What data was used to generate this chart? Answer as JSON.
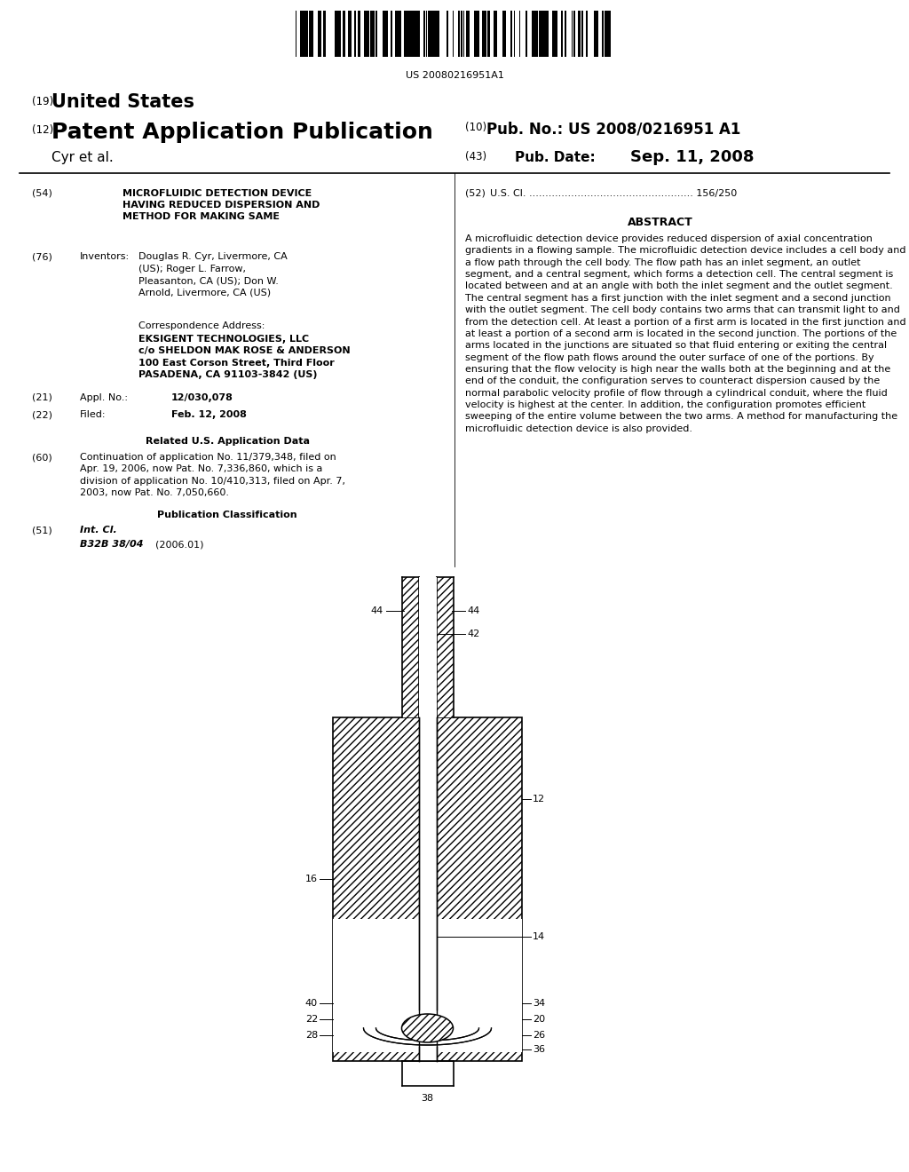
{
  "bg_color": "#ffffff",
  "barcode_text": "US 20080216951A1",
  "header_19": "(19)",
  "header_19_text": "United States",
  "header_12": "(12)",
  "header_12_text": "Patent Application Publication",
  "header_10": "(10)",
  "header_10_text": "Pub. No.: US 2008/0216951 A1",
  "header_43": "(43)",
  "header_43_text": "Pub. Date:",
  "header_43_date": "Sep. 11, 2008",
  "author_line": "Cyr et al.",
  "field_54_num": "(54)",
  "field_54_label": "MICROFLUIDIC DETECTION DEVICE\nHAVING REDUCED DISPERSION AND\nMETHOD FOR MAKING SAME",
  "field_76_num": "(76)",
  "field_76_label": "Inventors:",
  "field_76_text": "Douglas R. Cyr, Livermore, CA\n(US); Roger L. Farrow,\nPleasanton, CA (US); Don W.\nArnold, Livermore, CA (US)",
  "corr_label": "Correspondence Address:",
  "corr_text": "EKSIGENT TECHNOLOGIES, LLC\nc/o SHELDON MAK ROSE & ANDERSON\n100 East Corson Street, Third Floor\nPASADENA, CA 91103-3842 (US)",
  "field_21_num": "(21)",
  "field_21_label": "Appl. No.:",
  "field_21_text": "12/030,078",
  "field_22_num": "(22)",
  "field_22_label": "Filed:",
  "field_22_text": "Feb. 12, 2008",
  "related_header": "Related U.S. Application Data",
  "field_60_num": "(60)",
  "field_60_text": "Continuation of application No. 11/379,348, filed on\nApr. 19, 2006, now Pat. No. 7,336,860, which is a\ndivision of application No. 10/410,313, filed on Apr. 7,\n2003, now Pat. No. 7,050,660.",
  "pub_class_header": "Publication Classification",
  "field_51_num": "(51)",
  "field_51_label": "Int. Cl.",
  "field_51_class": "B32B 38/04",
  "field_51_year": "(2006.01)",
  "field_52_num": "(52)",
  "field_52_label": "U.S. Cl. ................................................... 156/250",
  "abstract_header": "ABSTRACT",
  "abstract_text": "A microfluidic detection device provides reduced dispersion of axial concentration gradients in a flowing sample. The microfluidic detection device includes a cell body and a flow path through the cell body. The flow path has an inlet segment, an outlet segment, and a central segment, which forms a detection cell. The central segment is located between and at an angle with both the inlet segment and the outlet segment. The central segment has a first junction with the inlet segment and a second junction with the outlet segment. The cell body contains two arms that can transmit light to and from the detection cell. At least a portion of a first arm is located in the first junction and at least a portion of a second arm is located in the second junction. The portions of the arms located in the junctions are situated so that fluid entering or exiting the central segment of the flow path flows around the outer surface of one of the portions. By ensuring that the flow velocity is high near the walls both at the beginning and at the end of the conduit, the configuration serves to counteract dispersion caused by the normal parabolic velocity profile of flow through a cylindrical conduit, where the fluid velocity is highest at the center. In addition, the configuration promotes efficient sweeping of the entire volume between the two arms. A method for manufacturing the microfluidic detection device is also provided."
}
